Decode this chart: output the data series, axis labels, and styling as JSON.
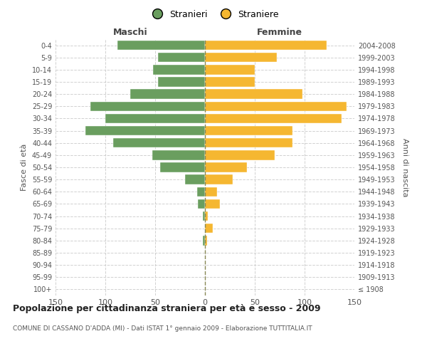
{
  "age_groups": [
    "100+",
    "95-99",
    "90-94",
    "85-89",
    "80-84",
    "75-79",
    "70-74",
    "65-69",
    "60-64",
    "55-59",
    "50-54",
    "45-49",
    "40-44",
    "35-39",
    "30-34",
    "25-29",
    "20-24",
    "15-19",
    "10-14",
    "5-9",
    "0-4"
  ],
  "birth_years": [
    "≤ 1908",
    "1909-1913",
    "1914-1918",
    "1919-1923",
    "1924-1928",
    "1929-1933",
    "1934-1938",
    "1939-1943",
    "1944-1948",
    "1949-1953",
    "1954-1958",
    "1959-1963",
    "1964-1968",
    "1969-1973",
    "1974-1978",
    "1979-1983",
    "1984-1988",
    "1989-1993",
    "1994-1998",
    "1999-2003",
    "2004-2008"
  ],
  "maschi": [
    0,
    0,
    0,
    0,
    2,
    0,
    2,
    7,
    8,
    20,
    45,
    53,
    92,
    120,
    100,
    115,
    75,
    47,
    52,
    47,
    88
  ],
  "femmine": [
    0,
    0,
    0,
    0,
    2,
    8,
    3,
    15,
    12,
    28,
    42,
    70,
    88,
    88,
    137,
    142,
    98,
    50,
    50,
    72,
    122
  ],
  "color_maschi": "#6a9e5f",
  "color_femmine": "#f5b731",
  "color_center_line": "#888855",
  "xlabel_maschi": "Maschi",
  "xlabel_femmine": "Femmine",
  "ylabel_left": "Fasce di età",
  "ylabel_right": "Anni di nascita",
  "legend_maschi": "Stranieri",
  "legend_femmine": "Straniere",
  "title": "Popolazione per cittadinanza straniera per età e sesso - 2009",
  "subtitle": "COMUNE DI CASSANO D'ADDA (MI) - Dati ISTAT 1° gennaio 2009 - Elaborazione TUTTITALIA.IT",
  "xlim": 150,
  "background_color": "#ffffff",
  "grid_color": "#cccccc"
}
